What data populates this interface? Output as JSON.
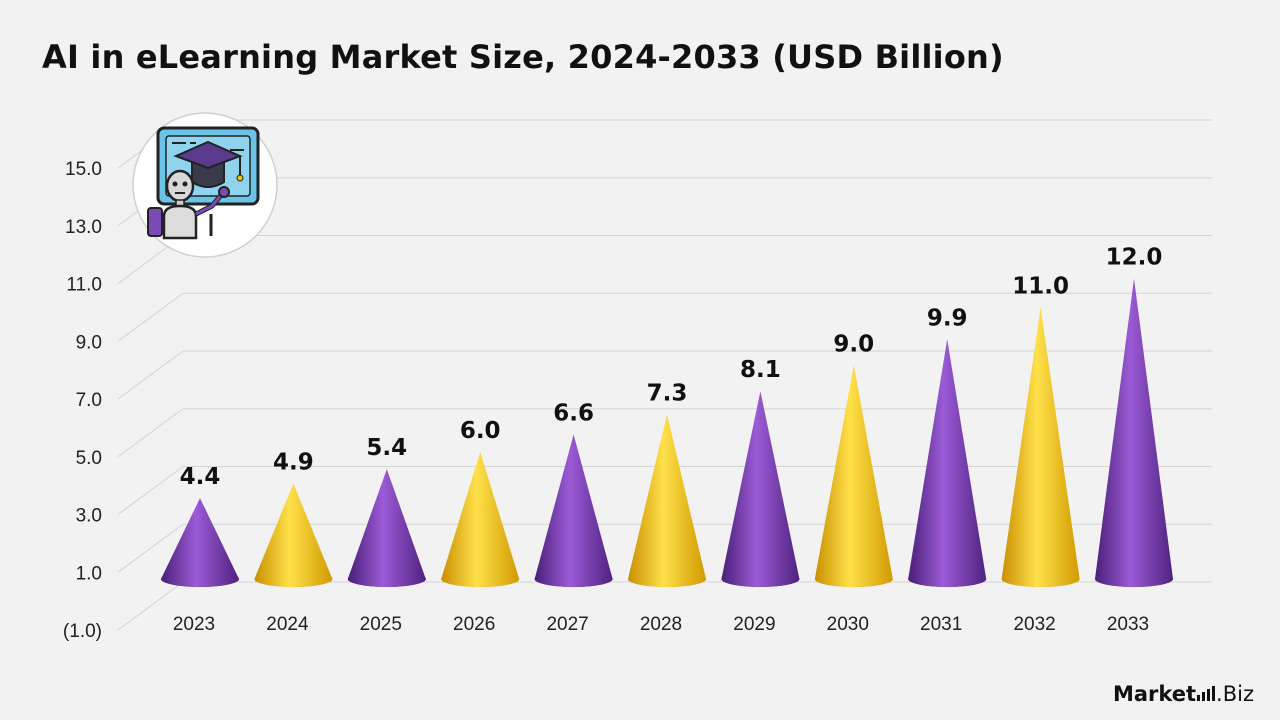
{
  "chart_data": {
    "type": "bar",
    "title": "AI in eLearning Market Size, 2024-2033 (USD Billion)",
    "categories": [
      "2023",
      "2024",
      "2025",
      "2026",
      "2027",
      "2028",
      "2029",
      "2030",
      "2031",
      "2032",
      "2033"
    ],
    "values": [
      4.4,
      4.9,
      5.4,
      6.0,
      6.6,
      7.3,
      8.1,
      9.0,
      9.9,
      11.0,
      12.0
    ],
    "value_labels": [
      "4.4",
      "4.9",
      "5.4",
      "6.0",
      "6.6",
      "7.3",
      "8.1",
      "9.0",
      "9.9",
      "11.0",
      "12.0"
    ],
    "y_ticks": [
      "(1.0)",
      "1.0",
      "3.0",
      "5.0",
      "7.0",
      "9.0",
      "11.0",
      "13.0",
      "15.0"
    ],
    "y_tick_values": [
      -1,
      1,
      3,
      5,
      7,
      9,
      11,
      13,
      15
    ],
    "ylim": [
      -1,
      15
    ],
    "grid": true,
    "bar_shape": "cone",
    "colors": {
      "purple": [
        "#5a2a8c",
        "#9b5bd6",
        "#4a1f78"
      ],
      "gold": [
        "#e0a800",
        "#ffe14a",
        "#c98f00"
      ],
      "grid": "#d4d4d4",
      "background": "#f2f2f2"
    },
    "color_pattern": [
      "purple",
      "gold",
      "purple",
      "gold",
      "purple",
      "gold",
      "purple",
      "gold",
      "purple",
      "gold",
      "purple"
    ]
  },
  "icon": {
    "name": "ai-robot-graduation-icon"
  },
  "brand": {
    "part1": "Market",
    "part2": ".Biz"
  }
}
